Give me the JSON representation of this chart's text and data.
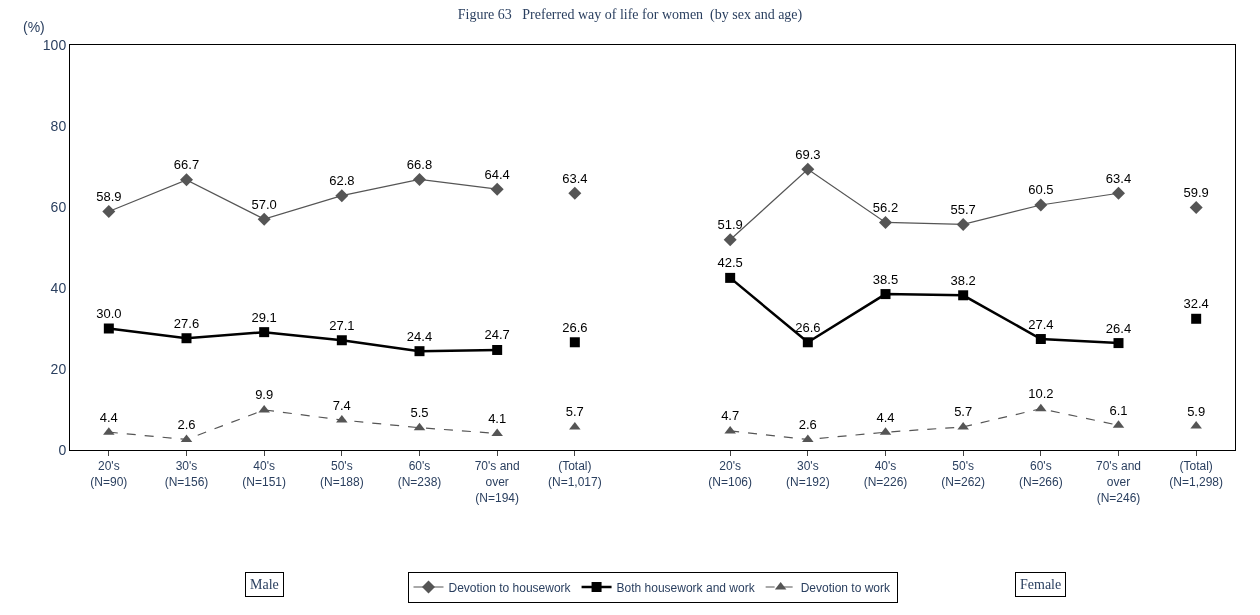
{
  "chart_data": {
    "type": "line",
    "title": "Figure 63   Preferred way of life for women  (by sex and age)",
    "ylabel": "(%)",
    "categories": [
      "20's\n(N=90)",
      "30's\n(N=156)",
      "40's\n(N=151)",
      "50's\n(N=188)",
      "60's\n(N=238)",
      "70's and\nover\n(N=194)",
      "(Total)\n(N=1,017)",
      null,
      "20's\n(N=106)",
      "30's\n(N=192)",
      "40's\n(N=226)",
      "50's\n(N=262)",
      "60's\n(N=266)",
      "70's and\nover\n(N=246)",
      "(Total)\n(N=1,298)"
    ],
    "series": [
      {
        "name": "Devotion to housework",
        "color": "#555555",
        "marker": "diamond",
        "line_style": "solid",
        "values": [
          58.9,
          66.7,
          57.0,
          62.8,
          66.8,
          64.4,
          null,
          null,
          51.9,
          69.3,
          56.2,
          55.7,
          60.5,
          63.4,
          null
        ],
        "value_labels": [
          "58.9",
          "66.7",
          "57.0",
          "62.8",
          "66.8",
          "64.4",
          null,
          null,
          "51.9",
          "69.3",
          "56.2",
          "55.7",
          "60.5",
          "63.4",
          null
        ]
      },
      {
        "name": "Both housework and work",
        "color": "#000000",
        "marker": "square",
        "line_style": "solid",
        "values": [
          30.0,
          27.6,
          29.1,
          27.1,
          24.4,
          24.7,
          null,
          null,
          42.5,
          26.6,
          38.5,
          38.2,
          27.4,
          26.4,
          null
        ],
        "value_labels": [
          "30.0",
          "27.6",
          "29.1",
          "27.1",
          "24.4",
          "24.7",
          null,
          null,
          "42.5",
          "26.6",
          "38.5",
          "38.2",
          "27.4",
          "26.4",
          null
        ]
      },
      {
        "name": "Devotion to work",
        "color": "#555555",
        "marker": "triangle",
        "line_style": "dashed",
        "values": [
          4.4,
          2.6,
          9.9,
          7.4,
          5.5,
          4.1,
          null,
          null,
          4.7,
          2.6,
          4.4,
          5.7,
          10.2,
          6.1,
          null
        ],
        "value_labels": [
          "4.4",
          "2.6",
          "9.9",
          "7.4",
          "5.5",
          "4.1",
          null,
          null,
          "4.7",
          "2.6",
          "4.4",
          "5.7",
          "10.2",
          "6.1",
          null
        ]
      },
      {
        "type": "scatter",
        "color": "#555555",
        "marker": "diamond",
        "values": [
          null,
          null,
          null,
          null,
          null,
          null,
          63.4,
          null,
          null,
          null,
          null,
          null,
          null,
          null,
          59.9
        ],
        "value_labels": [
          null,
          null,
          null,
          null,
          null,
          null,
          "63.4",
          null,
          null,
          null,
          null,
          null,
          null,
          null,
          "59.9"
        ]
      },
      {
        "type": "scatter",
        "color": "#000000",
        "marker": "square",
        "values": [
          null,
          null,
          null,
          null,
          null,
          null,
          26.6,
          null,
          null,
          null,
          null,
          null,
          null,
          null,
          32.4
        ],
        "value_labels": [
          null,
          null,
          null,
          null,
          null,
          null,
          "26.6",
          null,
          null,
          null,
          null,
          null,
          null,
          null,
          "32.4"
        ]
      },
      {
        "type": "scatter",
        "color": "#555555",
        "marker": "triangle",
        "values": [
          null,
          null,
          null,
          null,
          null,
          null,
          5.7,
          null,
          null,
          null,
          null,
          null,
          null,
          null,
          5.9
        ],
        "value_labels": [
          null,
          null,
          null,
          null,
          null,
          null,
          "5.7",
          null,
          null,
          null,
          null,
          null,
          null,
          null,
          "5.9"
        ]
      }
    ],
    "ylim": [
      0,
      100
    ],
    "yticks": [
      0,
      20,
      40,
      60,
      80,
      100
    ],
    "legend": "bottom",
    "annotations": [
      "Male",
      "Female"
    ]
  }
}
